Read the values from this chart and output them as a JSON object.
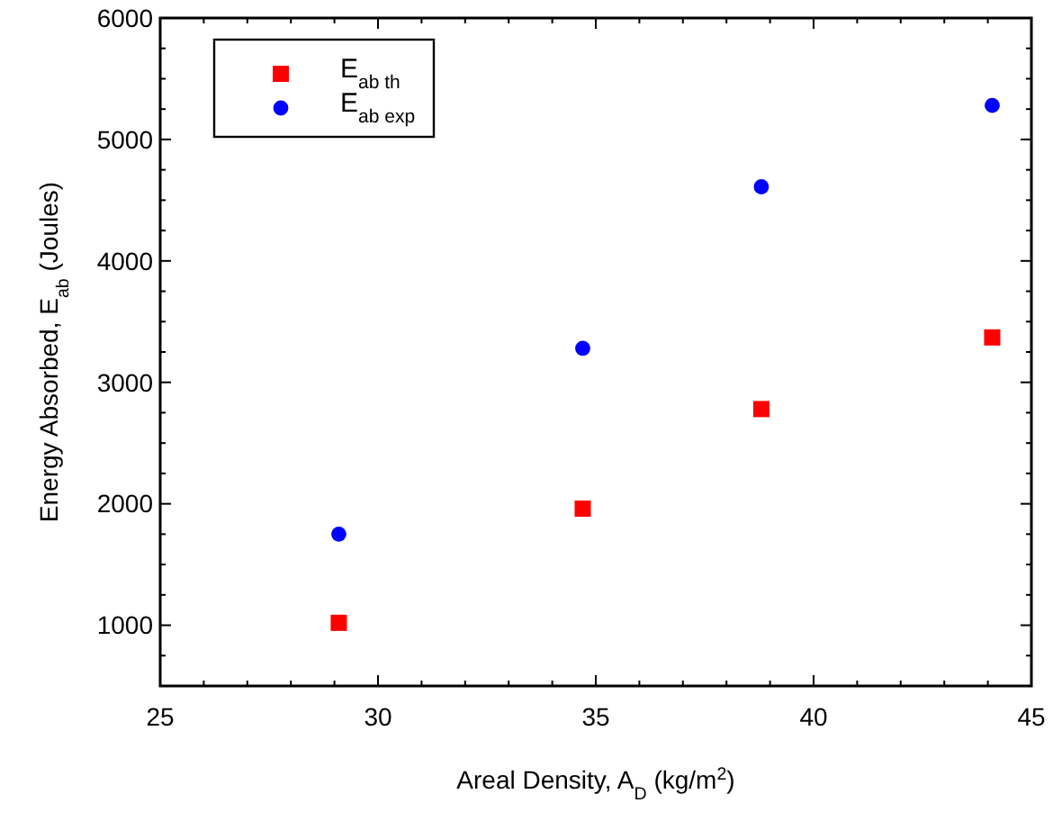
{
  "chart_data": {
    "type": "scatter",
    "xlabel": "Areal Density, A$_{D}$ (kg/m$^{2}$)",
    "ylabel": "Energy Absorbed, E$_{ab}$ (Joules)",
    "x": [
      29.1,
      34.7,
      38.8,
      44.1
    ],
    "series": [
      {
        "name": "E$_{ab th}$",
        "color": "#ff0000",
        "marker": "square",
        "values": [
          1020,
          1960,
          2780,
          3370
        ]
      },
      {
        "name": "E$_{ab exp}$",
        "color": "#0000ff",
        "marker": "circle",
        "values": [
          1750,
          3280,
          4610,
          5280
        ]
      }
    ],
    "xlim": [
      25,
      45
    ],
    "xticks": [
      25,
      {
        "value": 26,
        "label": null
      },
      {
        "value": 27,
        "label": null
      },
      {
        "value": 28,
        "label": null
      },
      {
        "value": 29,
        "label": null
      },
      30,
      {
        "value": 31,
        "label": null
      },
      {
        "value": 32,
        "label": null
      },
      {
        "value": 33,
        "label": null
      },
      {
        "value": 34,
        "label": null
      },
      35,
      {
        "value": 36,
        "label": null
      },
      {
        "value": 37,
        "label": null
      },
      {
        "value": 38,
        "label": null
      },
      {
        "value": 39,
        "label": null
      },
      40,
      {
        "value": 41,
        "label": null
      },
      {
        "value": 42,
        "label": null
      },
      {
        "value": 43,
        "label": null
      },
      {
        "value": 44,
        "label": null
      },
      45
    ],
    "ylim": [
      500,
      6000
    ],
    "yticks": [
      {
        "value": 750,
        "label": null
      },
      1000,
      {
        "value": 1250,
        "label": null
      },
      {
        "value": 1500,
        "label": null
      },
      {
        "value": 1750,
        "label": null
      },
      2000,
      {
        "value": 2250,
        "label": null
      },
      {
        "value": 2500,
        "label": null
      },
      {
        "value": 2750,
        "label": null
      },
      3000,
      {
        "value": 3250,
        "label": null
      },
      {
        "value": 3500,
        "label": null
      },
      {
        "value": 3750,
        "label": null
      },
      4000,
      {
        "value": 4250,
        "label": null
      },
      {
        "value": 4500,
        "label": null
      },
      {
        "value": 4750,
        "label": null
      },
      5000,
      {
        "value": 5250,
        "label": null
      },
      {
        "value": 5500,
        "label": null
      },
      {
        "value": 5750,
        "label": null
      },
      6000
    ],
    "grid": false,
    "legend": "top left"
  }
}
